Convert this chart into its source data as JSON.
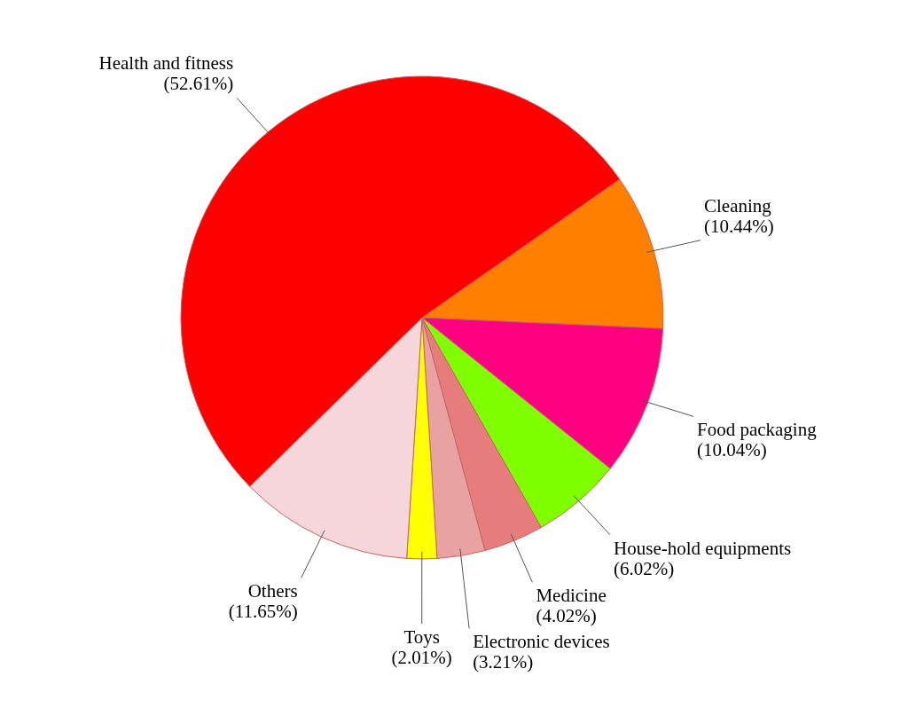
{
  "chart_data": {
    "type": "pie",
    "categories": [
      "Cleaning",
      "Food packaging",
      "House-hold equipments",
      "Medicine",
      "Electronic devices",
      "Toys",
      "Others",
      "Health and fitness"
    ],
    "values": [
      10.44,
      10.04,
      6.02,
      4.02,
      3.21,
      2.01,
      11.65,
      52.61
    ],
    "value_labels": [
      "(10.44%)",
      "(10.04%)",
      "(6.02%)",
      "(4.02%)",
      "(3.21%)",
      "(2.01%)",
      "(11.65%)",
      "(52.61%)"
    ],
    "colors": [
      "#ff8000",
      "#ff0080",
      "#80ff00",
      "#e67c7c",
      "#e8a2a2",
      "#ffff00",
      "#f5d6da",
      "#ff0000"
    ]
  }
}
